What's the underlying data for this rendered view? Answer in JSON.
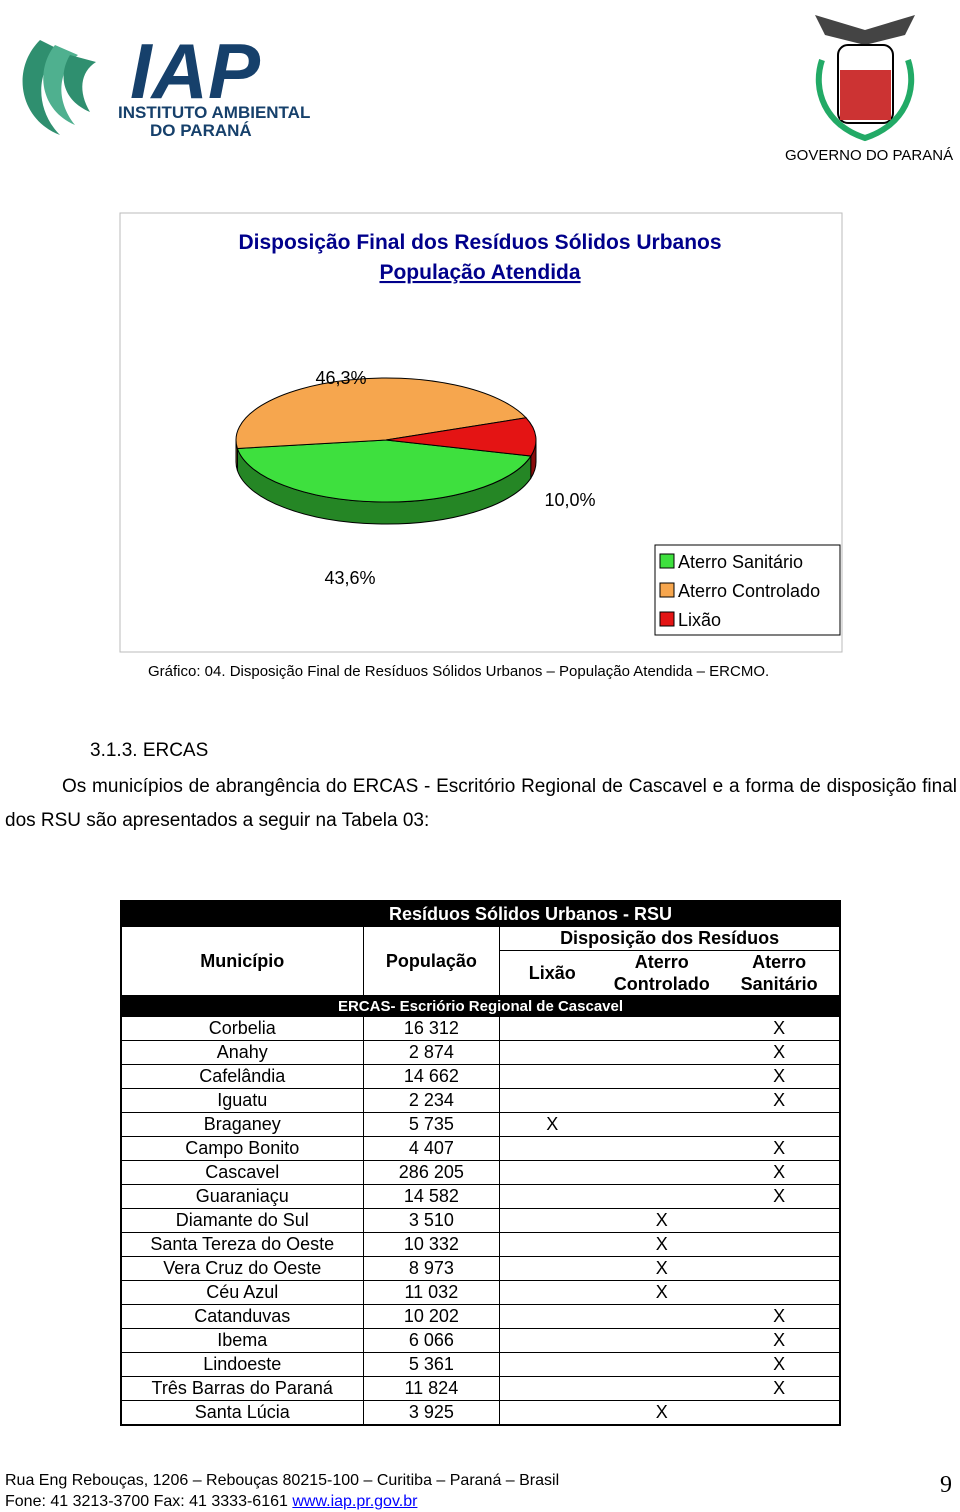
{
  "header": {
    "logo_text": "IAP",
    "logo_line1": "INSTITUTO AMBIENTAL",
    "logo_line2": "DO PARANÁ",
    "government": "GOVERNO DO PARANÁ"
  },
  "chart_data": {
    "type": "pie",
    "title": "Disposição Final dos Resíduos Sólidos Urbanos",
    "subtitle": "População Atendida",
    "categories": [
      "Aterro Sanitário",
      "Aterro Controlado",
      "Lixão"
    ],
    "values": [
      43.6,
      46.3,
      10.0
    ],
    "value_labels": [
      "43,6%",
      "46,3%",
      "10,0%"
    ],
    "colors": [
      "#3ee03e",
      "#f6a64e",
      "#e41414"
    ],
    "legend": "bottom-right"
  },
  "caption": "Gráfico: 04. Disposição Final de Resíduos Sólidos Urbanos – População Atendida – ERCMO.",
  "section": {
    "heading": "3.1.3. ERCAS",
    "paragraph": "Os municípios de abrangência do ERCAS - Escritório Regional de Cascavel e a forma de disposição final dos RSU são apresentados a seguir na Tabela 03:"
  },
  "table": {
    "title": "Resíduos Sólidos Urbanos - RSU",
    "columns": [
      "Município",
      "População"
    ],
    "group": "Disposição dos Resíduos",
    "subcolumns": [
      "Lixão",
      "Aterro Controlado",
      "Aterro Sanitário"
    ],
    "region": "ERCAS- Escriório Regional de Cascavel",
    "rows": [
      [
        "Corbelia",
        "16 312",
        null,
        null,
        "X"
      ],
      [
        "Anahy",
        "2 874",
        null,
        null,
        "X"
      ],
      [
        "Cafelândia",
        "14 662",
        null,
        null,
        "X"
      ],
      [
        "Iguatu",
        "2 234",
        null,
        null,
        "X"
      ],
      [
        "Braganey",
        "5 735",
        "X",
        null,
        null
      ],
      [
        "Campo Bonito",
        "4 407",
        null,
        null,
        "X"
      ],
      [
        "Cascavel",
        "286 205",
        null,
        null,
        "X"
      ],
      [
        "Guaraniaçu",
        "14 582",
        null,
        null,
        "X"
      ],
      [
        "Diamante do Sul",
        "3 510",
        null,
        "X",
        null
      ],
      [
        "Santa Tereza do Oeste",
        "10 332",
        null,
        "X",
        null
      ],
      [
        "Vera Cruz do Oeste",
        "8 973",
        null,
        "X",
        null
      ],
      [
        "Céu Azul",
        "11 032",
        null,
        "X",
        null
      ],
      [
        "Catanduvas",
        "10 202",
        null,
        null,
        "X"
      ],
      [
        "Ibema",
        "6 066",
        null,
        null,
        "X"
      ],
      [
        "Lindoeste",
        "5 361",
        null,
        null,
        "X"
      ],
      [
        "Três Barras do Paraná",
        "11 824",
        null,
        null,
        "X"
      ],
      [
        "Santa Lúcia",
        "3 925",
        null,
        "X",
        null
      ]
    ]
  },
  "footer": {
    "address": "Rua Eng Rebouças, 1206 – Rebouças 80215-100 – Curitiba – Paraná – Brasil",
    "phone": "Fone: 41 3213-3700 Fax: 41 3333-6161",
    "url": "www.iap.pr.gov.br",
    "page": "9"
  }
}
